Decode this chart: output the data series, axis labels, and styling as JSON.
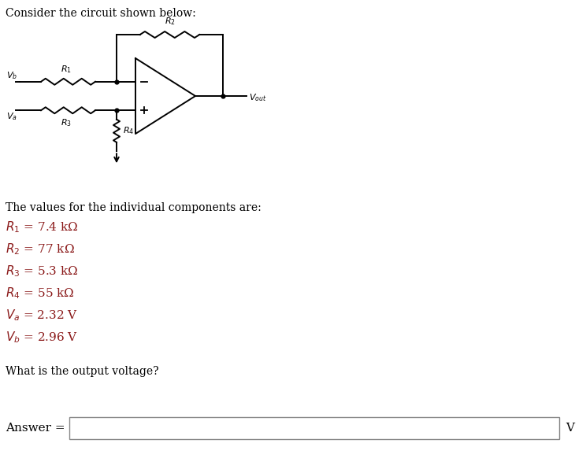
{
  "title": "Consider the circuit shown below:",
  "component_text": "The values for the individual components are:",
  "components": [
    {
      "label": "R",
      "sub": "1",
      "value": " = 7.4 kΩ"
    },
    {
      "label": "R",
      "sub": "2",
      "value": " = 77 kΩ"
    },
    {
      "label": "R",
      "sub": "3",
      "value": " = 5.3 kΩ"
    },
    {
      "label": "R",
      "sub": "4",
      "value": " = 55 kΩ"
    },
    {
      "label": "V",
      "sub": "a",
      "value": " = 2.32 V"
    },
    {
      "label": "V",
      "sub": "b",
      "value": " = 2.96 V"
    }
  ],
  "question": "What is the output voltage?",
  "answer_label": "Answer = ",
  "unit": "V",
  "black": "#000000",
  "dark_red": "#8B1A1A",
  "bg_color": "#ffffff",
  "figsize": [
    7.44,
    5.82
  ],
  "dpi": 100
}
